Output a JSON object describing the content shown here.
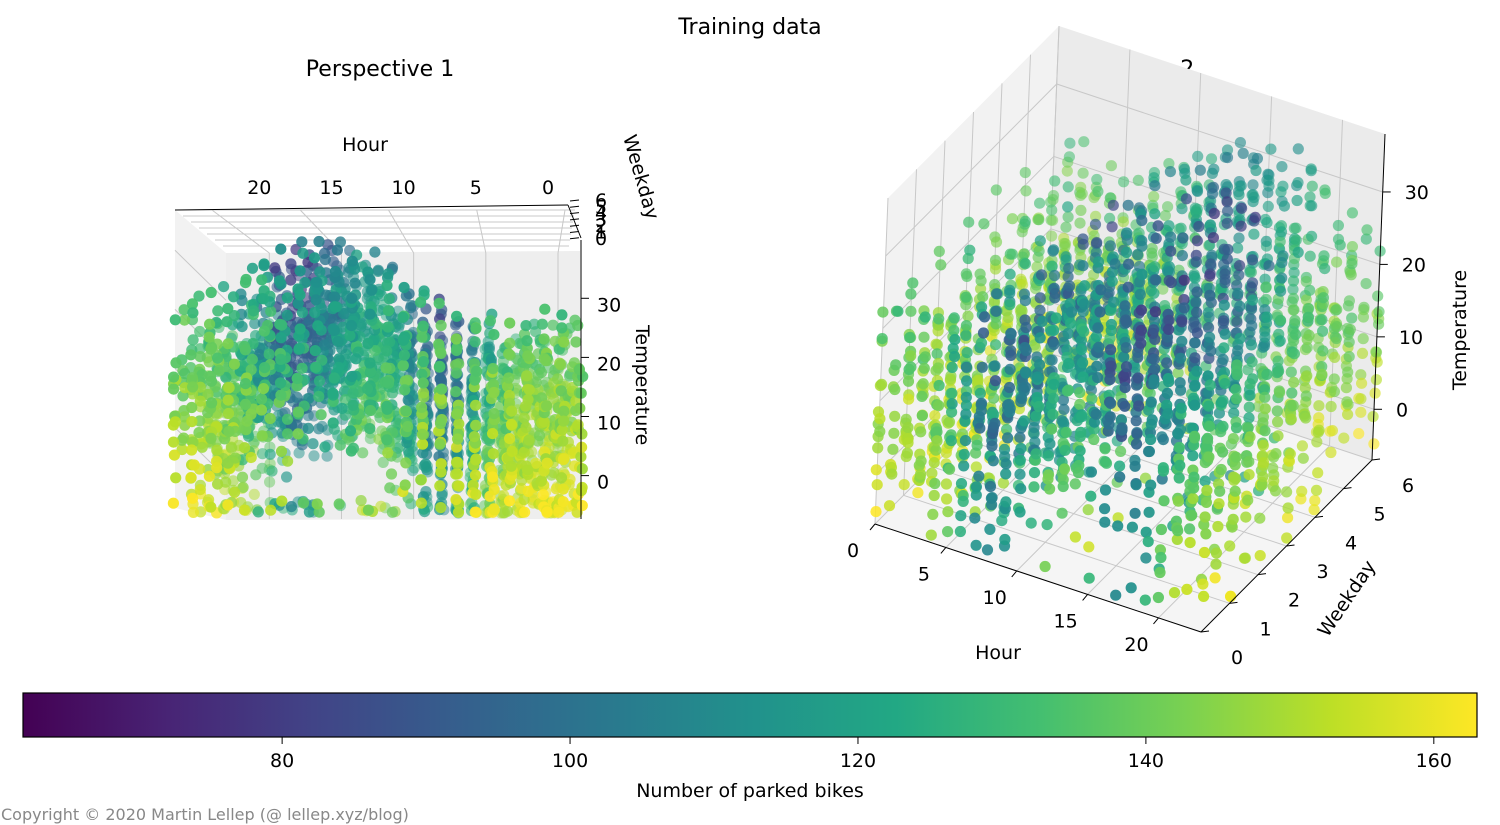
{
  "chart_data": {
    "title": "Training data",
    "type": "scatter",
    "panels": [
      {
        "subtitle": "Perspective 1",
        "xlabel": "Hour",
        "ylabel": "Weekday",
        "zlabel": "Temperature",
        "x_ticks": [
          "20",
          "15",
          "10",
          "5",
          "0"
        ],
        "y_ticks": [
          "6",
          "5",
          "4",
          "3",
          "2",
          "1",
          "0"
        ],
        "z_ticks": [
          "30",
          "20",
          "10",
          "0"
        ]
      },
      {
        "subtitle": "Perspective 2",
        "xlabel": "Hour",
        "ylabel": "Weekday",
        "zlabel": "Temperature",
        "x_ticks": [
          "0",
          "5",
          "10",
          "15",
          "20"
        ],
        "y_ticks": [
          "0",
          "1",
          "2",
          "3",
          "4",
          "5",
          "6"
        ],
        "z_ticks": [
          "0",
          "10",
          "20",
          "30"
        ]
      }
    ],
    "x_range": [
      0,
      23
    ],
    "y_range": [
      0,
      6
    ],
    "z_range": [
      -7,
      38
    ],
    "colorbar": {
      "label": "Number of parked bikes",
      "range": [
        62,
        163
      ],
      "ticks": [
        "80",
        "100",
        "120",
        "140",
        "160"
      ],
      "colormap": "viridis"
    }
  },
  "colors": {
    "viridis": [
      "#440154",
      "#482475",
      "#414487",
      "#355f8d",
      "#2a788e",
      "#21918c",
      "#22a884",
      "#44bf70",
      "#7ad151",
      "#bddf26",
      "#fde725"
    ],
    "pane": "#f2f2f2",
    "grid": "#c8c8c8"
  },
  "copyright": "Copyright © 2020 Martin Lellep (@ lellep.xyz/blog)"
}
